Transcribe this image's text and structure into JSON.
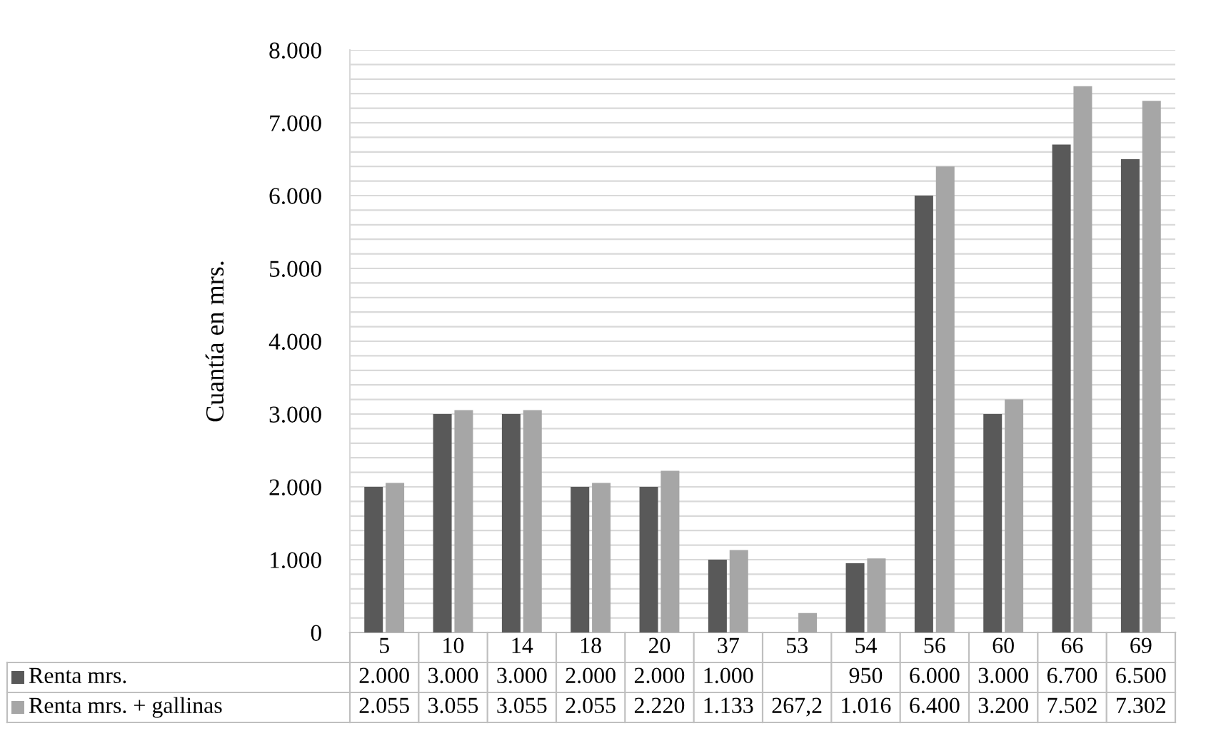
{
  "chart_data": {
    "type": "bar",
    "ylabel": "Cuantía en mrs.",
    "categories": [
      "5",
      "10",
      "14",
      "18",
      "20",
      "37",
      "53",
      "54",
      "56",
      "60",
      "66",
      "69"
    ],
    "series": [
      {
        "name": "Renta mrs.",
        "color": "#595959",
        "values": [
          2000,
          3000,
          3000,
          2000,
          2000,
          1000,
          null,
          950,
          6000,
          3000,
          6700,
          6500
        ],
        "value_labels": [
          "2.000",
          "3.000",
          "3.000",
          "2.000",
          "2.000",
          "1.000",
          null,
          "950",
          "6.000",
          "3.000",
          "6.700",
          "6.500"
        ]
      },
      {
        "name": "Renta mrs. + gallinas",
        "color": "#a6a6a6",
        "values": [
          2055,
          3055,
          3055,
          2055,
          2220,
          1133,
          267.2,
          1016,
          6400,
          3200,
          7502,
          7302
        ],
        "value_labels": [
          "2.055",
          "3.055",
          "3.055",
          "2.055",
          "2.220",
          "1.133",
          "267,2",
          "1.016",
          "6.400",
          "3.200",
          "7.502",
          "7.302"
        ]
      }
    ],
    "ylim": [
      0,
      8000
    ],
    "yticks": [
      0,
      {
        "value": 200,
        "label": null
      },
      {
        "value": 400,
        "label": null
      },
      {
        "value": 600,
        "label": null
      },
      {
        "value": 800,
        "label": null
      },
      {
        "value": 1000,
        "label": "1.000"
      },
      {
        "value": 1200,
        "label": null
      },
      {
        "value": 1400,
        "label": null
      },
      {
        "value": 1600,
        "label": null
      },
      {
        "value": 1800,
        "label": null
      },
      {
        "value": 2000,
        "label": "2.000"
      },
      {
        "value": 2200,
        "label": null
      },
      {
        "value": 2400,
        "label": null
      },
      {
        "value": 2600,
        "label": null
      },
      {
        "value": 2800,
        "label": null
      },
      {
        "value": 3000,
        "label": "3.000"
      },
      {
        "value": 3200,
        "label": null
      },
      {
        "value": 3400,
        "label": null
      },
      {
        "value": 3600,
        "label": null
      },
      {
        "value": 3800,
        "label": null
      },
      {
        "value": 4000,
        "label": "4.000"
      },
      {
        "value": 4200,
        "label": null
      },
      {
        "value": 4400,
        "label": null
      },
      {
        "value": 4600,
        "label": null
      },
      {
        "value": 4800,
        "label": null
      },
      {
        "value": 5000,
        "label": "5.000"
      },
      {
        "value": 5200,
        "label": null
      },
      {
        "value": 5400,
        "label": null
      },
      {
        "value": 5600,
        "label": null
      },
      {
        "value": 5800,
        "label": null
      },
      {
        "value": 6000,
        "label": "6.000"
      },
      {
        "value": 6200,
        "label": null
      },
      {
        "value": 6400,
        "label": null
      },
      {
        "value": 6600,
        "label": null
      },
      {
        "value": 6800,
        "label": null
      },
      {
        "value": 7000,
        "label": "7.000"
      },
      {
        "value": 7200,
        "label": null
      },
      {
        "value": 7400,
        "label": null
      },
      {
        "value": 7600,
        "label": null
      },
      {
        "value": 7800,
        "label": null
      },
      {
        "value": 8000,
        "label": "8.000"
      }
    ],
    "grid": "y",
    "legend": "bottom"
  }
}
